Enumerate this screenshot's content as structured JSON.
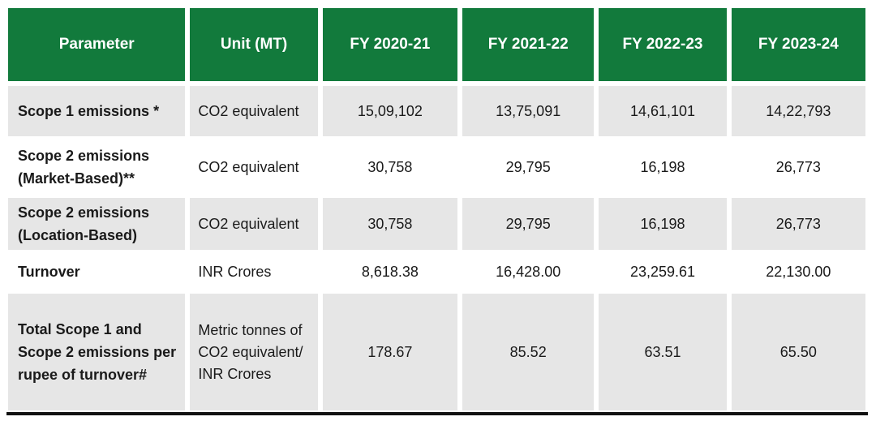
{
  "headers": [
    "Parameter",
    "Unit (MT)",
    "FY 2020-21",
    "FY 2021-22",
    "FY 2022-23",
    "FY 2023-24"
  ],
  "rows": [
    {
      "parameter": "Scope 1 emissions *",
      "unit": "CO2 equivalent",
      "values": [
        "15,09,102",
        "13,75,091",
        "14,61,101",
        "14,22,793"
      ]
    },
    {
      "parameter": "Scope 2 emissions (Market-Based)**",
      "unit": "CO2 equivalent",
      "values": [
        "30,758",
        "29,795",
        "16,198",
        "26,773"
      ]
    },
    {
      "parameter": "Scope 2 emissions (Location-Based)",
      "unit": "CO2 equivalent",
      "values": [
        "30,758",
        "29,795",
        "16,198",
        "26,773"
      ]
    },
    {
      "parameter": "Turnover",
      "unit": "INR Crores",
      "values": [
        "8,618.38",
        "16,428.00",
        "23,259.61",
        "22,130.00"
      ]
    },
    {
      "parameter": "Total Scope 1 and Scope 2 emissions per rupee of turnover#",
      "unit": "Metric tonnes of CO2 equivalent/ INR Crores",
      "values": [
        "178.67",
        "85.52",
        "63.51",
        "65.50"
      ]
    }
  ],
  "colors": {
    "header_bg": "#127a3c",
    "header_text": "#ffffff",
    "row_shade": "#e6e6e6"
  }
}
